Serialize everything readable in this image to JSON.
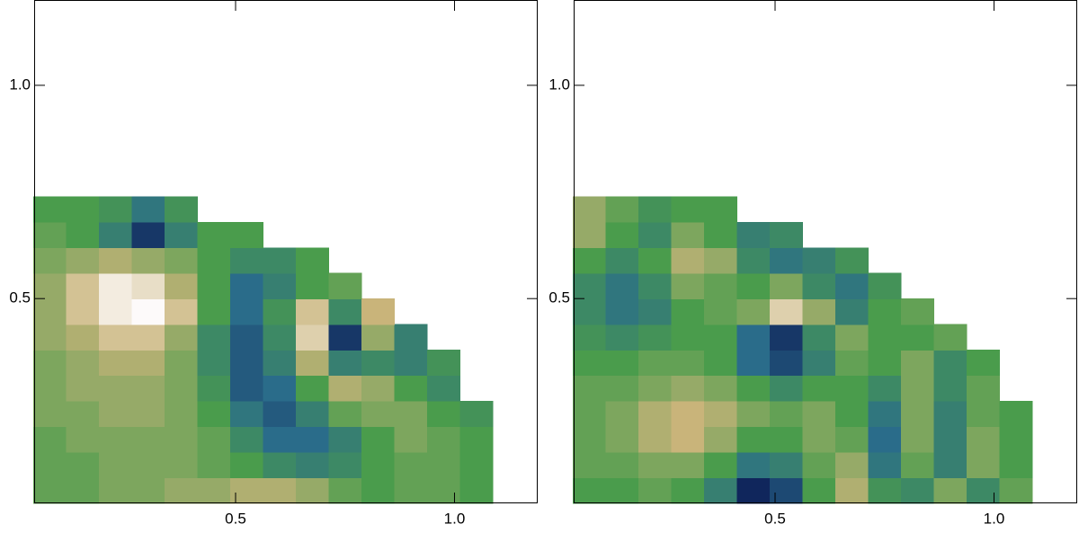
{
  "chart_data": [
    {
      "type": "heatmap",
      "x": [
        0.075,
        0.15,
        0.225,
        0.3,
        0.375,
        0.45,
        0.525,
        0.6,
        0.675,
        0.75,
        0.825,
        0.9,
        0.975,
        1.05,
        1.125
      ],
      "y": [
        0.05,
        0.11,
        0.17,
        0.23,
        0.29,
        0.35,
        0.41,
        0.47,
        0.53,
        0.59,
        0.65,
        0.71
      ],
      "z": [
        [
          0.1,
          0.1,
          0.2,
          0.2,
          0.3,
          0.3,
          0.4,
          0.4,
          0.3,
          0.1,
          0,
          0.1,
          0.1,
          0,
          null
        ],
        [
          0.1,
          0.1,
          0.2,
          0.2,
          0.2,
          0.1,
          0,
          -0.2,
          -0.3,
          -0.2,
          0,
          0.1,
          0.1,
          0,
          null
        ],
        [
          0.1,
          0.2,
          0.2,
          0.2,
          0.2,
          0.1,
          -0.2,
          -0.5,
          -0.5,
          -0.3,
          0,
          0.2,
          0.1,
          0,
          null
        ],
        [
          0.2,
          0.2,
          0.3,
          0.3,
          0.2,
          0,
          -0.4,
          -0.6,
          -0.3,
          0.1,
          0.2,
          0.2,
          0,
          -0.1,
          null
        ],
        [
          0.2,
          0.3,
          0.3,
          0.3,
          0.2,
          -0.1,
          -0.6,
          -0.5,
          0,
          0.4,
          0.3,
          0,
          -0.2,
          null,
          null
        ],
        [
          0.2,
          0.3,
          0.4,
          0.4,
          0.2,
          -0.2,
          -0.6,
          -0.3,
          0.4,
          -0.3,
          -0.2,
          -0.3,
          -0.1,
          null,
          null
        ],
        [
          0.3,
          0.4,
          0.6,
          0.6,
          0.3,
          -0.2,
          -0.6,
          -0.2,
          0.7,
          -0.8,
          0.3,
          -0.3,
          null,
          null,
          null
        ],
        [
          0.3,
          0.6,
          0.9,
          1.0,
          0.6,
          0,
          -0.5,
          -0.1,
          0.6,
          -0.2,
          0.5,
          null,
          null,
          null,
          null
        ],
        [
          0.3,
          0.6,
          0.9,
          0.8,
          0.4,
          0,
          -0.5,
          -0.3,
          0,
          0.1,
          null,
          null,
          null,
          null,
          null
        ],
        [
          0.2,
          0.3,
          0.4,
          0.3,
          0.2,
          0,
          -0.2,
          -0.2,
          0,
          null,
          null,
          null,
          null,
          null,
          null
        ],
        [
          0.1,
          0,
          -0.3,
          -0.8,
          -0.3,
          0,
          0,
          null,
          null,
          null,
          null,
          null,
          null,
          null,
          null
        ],
        [
          0,
          0,
          -0.1,
          -0.4,
          -0.1,
          null,
          null,
          null,
          null,
          null,
          null,
          null,
          null,
          null,
          null
        ]
      ],
      "zlim": [
        -1,
        1
      ],
      "colormap": [
        "#0a1450",
        "#2a6c8a",
        "#4a9c4c",
        "#c9b47a",
        "#fdfafa"
      ],
      "xlim": [
        0.04,
        1.19
      ],
      "ylim": [
        0.02,
        1.2
      ],
      "xticks": [
        0.5,
        {
          "value": 1.0,
          "label": "1.0"
        }
      ],
      "yticks": [
        0.5,
        {
          "value": 1.0,
          "label": "1.0"
        }
      ]
    },
    {
      "type": "heatmap",
      "x": [
        0.075,
        0.15,
        0.225,
        0.3,
        0.375,
        0.45,
        0.525,
        0.6,
        0.675,
        0.75,
        0.825,
        0.9,
        0.975,
        1.05,
        1.125
      ],
      "y": [
        0.05,
        0.11,
        0.17,
        0.23,
        0.29,
        0.35,
        0.41,
        0.47,
        0.53,
        0.59,
        0.65,
        0.71
      ],
      "z": [
        [
          0,
          0,
          0.1,
          0,
          -0.3,
          -0.9,
          -0.7,
          0,
          0.4,
          -0.1,
          -0.2,
          0.2,
          -0.2,
          0.1,
          null
        ],
        [
          0.1,
          0.1,
          0.2,
          0.2,
          0,
          -0.4,
          -0.3,
          0.1,
          0.3,
          -0.4,
          0.1,
          -0.3,
          0.2,
          0,
          null
        ],
        [
          0.1,
          0.2,
          0.4,
          0.5,
          0.3,
          0,
          0,
          0.2,
          0.1,
          -0.5,
          0.2,
          -0.3,
          0.2,
          0,
          null
        ],
        [
          0.1,
          0.2,
          0.4,
          0.5,
          0.4,
          0.2,
          0.1,
          0.2,
          0,
          -0.4,
          0.2,
          -0.3,
          0.1,
          0,
          null
        ],
        [
          0.1,
          0.1,
          0.2,
          0.3,
          0.2,
          0,
          -0.2,
          0,
          0,
          -0.2,
          0.2,
          -0.2,
          0.1,
          null,
          null
        ],
        [
          0,
          0,
          0.1,
          0.1,
          0,
          -0.5,
          -0.7,
          -0.3,
          0.1,
          0,
          0.2,
          -0.2,
          0,
          null,
          null
        ],
        [
          -0.1,
          -0.2,
          -0.1,
          0,
          0,
          -0.5,
          -0.8,
          -0.2,
          0.2,
          0,
          0,
          0.1,
          null,
          null,
          null
        ],
        [
          -0.2,
          -0.4,
          -0.3,
          0,
          0.1,
          0.2,
          0.7,
          0.3,
          -0.3,
          0,
          0.1,
          null,
          null,
          null,
          null
        ],
        [
          -0.2,
          -0.4,
          -0.2,
          0.2,
          0.1,
          0,
          0.2,
          -0.2,
          -0.4,
          -0.1,
          null,
          null,
          null,
          null,
          null
        ],
        [
          0,
          -0.2,
          0,
          0.4,
          0.3,
          -0.2,
          -0.4,
          -0.3,
          -0.1,
          null,
          null,
          null,
          null,
          null,
          null
        ],
        [
          0.3,
          0,
          -0.2,
          0.2,
          0,
          -0.3,
          -0.2,
          null,
          null,
          null,
          null,
          null,
          null,
          null,
          null
        ],
        [
          0.3,
          0.1,
          -0.1,
          0,
          0,
          null,
          null,
          null,
          null,
          null,
          null,
          null,
          null,
          null,
          null
        ]
      ],
      "zlim": [
        -1,
        1
      ],
      "colormap": [
        "#0a1450",
        "#2a6c8a",
        "#4a9c4c",
        "#c9b47a",
        "#fdfafa"
      ],
      "xlim": [
        0.04,
        1.19
      ],
      "ylim": [
        0.02,
        1.2
      ],
      "xticks": [
        0.5,
        {
          "value": 1.0,
          "label": "1.0"
        }
      ],
      "yticks": [
        0.5,
        {
          "value": 1.0,
          "label": "1.0"
        }
      ]
    }
  ]
}
